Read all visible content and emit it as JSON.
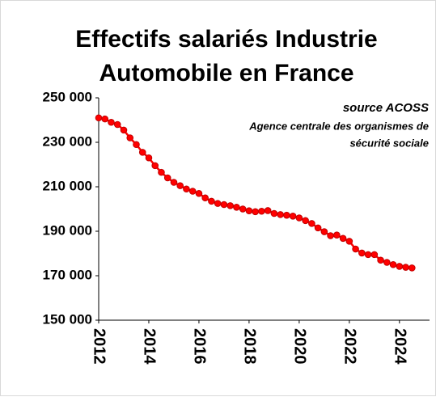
{
  "chart_data": {
    "type": "line",
    "title": [
      "Effectifs salariés Industrie",
      "Automobile en France"
    ],
    "annotations": [
      "source ACOSS",
      "Agence centrale des organismes de",
      "sécurité sociale"
    ],
    "x": [
      2012,
      2012.25,
      2012.5,
      2012.75,
      2013,
      2013.25,
      2013.5,
      2013.75,
      2014,
      2014.25,
      2014.5,
      2014.75,
      2015,
      2015.25,
      2015.5,
      2015.75,
      2016,
      2016.25,
      2016.5,
      2016.75,
      2017,
      2017.25,
      2017.5,
      2017.75,
      2018,
      2018.25,
      2018.5,
      2018.75,
      2019,
      2019.25,
      2019.5,
      2019.75,
      2020,
      2020.25,
      2020.5,
      2020.75,
      2021,
      2021.25,
      2021.5,
      2021.75,
      2022,
      2022.25,
      2022.5,
      2022.75,
      2023,
      2023.25,
      2023.5,
      2023.75,
      2024,
      2024.25,
      2024.5
    ],
    "series": [
      {
        "name": "Effectifs",
        "color": "#ff0000",
        "values": [
          241000,
          240500,
          239000,
          238000,
          235500,
          232000,
          229000,
          225500,
          223000,
          219500,
          216500,
          214000,
          212000,
          210500,
          209000,
          208000,
          207000,
          205000,
          203500,
          202500,
          202000,
          201500,
          200800,
          200000,
          199200,
          198800,
          199000,
          199300,
          198000,
          197500,
          197200,
          196800,
          196000,
          194800,
          193500,
          191500,
          189800,
          188000,
          188300,
          186800,
          185500,
          182000,
          180200,
          179500,
          179500,
          177000,
          176000,
          175000,
          174200,
          173800,
          173500
        ]
      }
    ],
    "xlim": [
      2012,
      2025.2
    ],
    "xticks": [
      2012,
      2014,
      2016,
      2018,
      2020,
      2022,
      2024
    ],
    "ylim": [
      150000,
      250000
    ],
    "yticks": [
      {
        "value": 150000,
        "label": "150 000"
      },
      {
        "value": 170000,
        "label": "170 000"
      },
      {
        "value": 190000,
        "label": "190 000"
      },
      {
        "value": 210000,
        "label": "210 000"
      },
      {
        "value": 230000,
        "label": "230 000"
      },
      {
        "value": 250000,
        "label": "250 000"
      }
    ],
    "grid": false
  }
}
